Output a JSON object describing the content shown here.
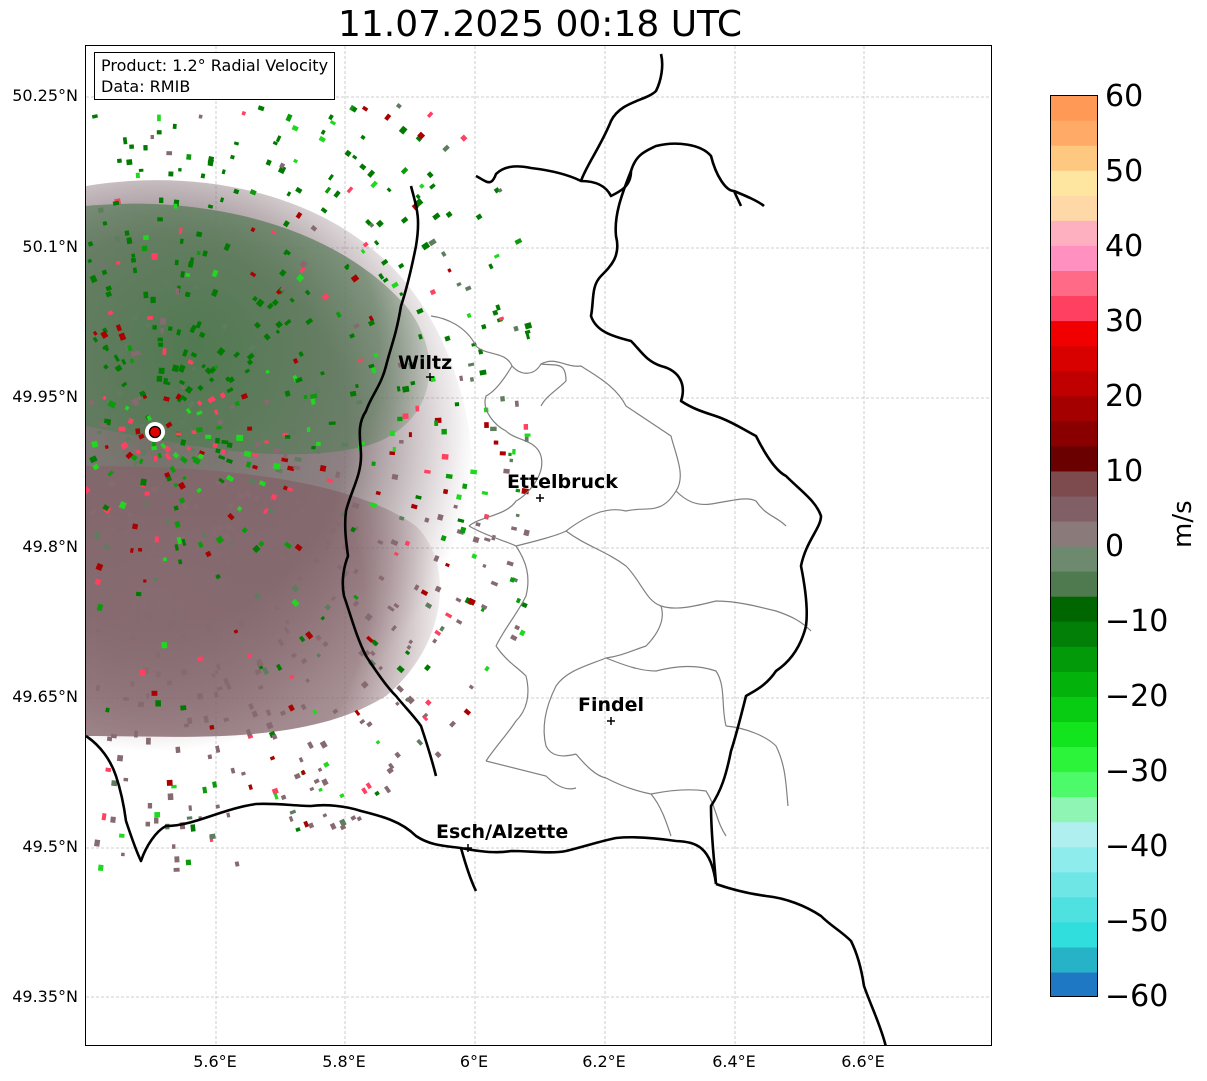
{
  "title": "11.07.2025 00:18 UTC",
  "info_box": {
    "product": "Product: 1.2° Radial Velocity",
    "data": "Data: RMIB"
  },
  "lat_labels": [
    "50.25°N",
    "50.1°N",
    "49.95°N",
    "49.8°N",
    "49.65°N",
    "49.5°N",
    "49.35°N"
  ],
  "lon_labels": [
    "5.6°E",
    "5.8°E",
    "6°E",
    "6.2°E",
    "6.4°E",
    "6.6°E"
  ],
  "cities": [
    {
      "name": "Wiltz"
    },
    {
      "name": "Ettelbruck"
    },
    {
      "name": "Findel"
    },
    {
      "name": "Esch/Alzette"
    }
  ],
  "colorbar": {
    "unit": "m/s",
    "ticks": [
      "60",
      "50",
      "40",
      "30",
      "20",
      "10",
      "0",
      "−10",
      "−20",
      "−30",
      "−40",
      "−50",
      "−60"
    ],
    "min": -60,
    "max": 60,
    "colors_low_to_high": [
      "#1f78c4",
      "#27b3c7",
      "#2fdedd",
      "#4fe0e0",
      "#6fe6e6",
      "#8fecec",
      "#afefef",
      "#8ef5b4",
      "#4dfa6a",
      "#2bf43a",
      "#12e51e",
      "#08cc12",
      "#03b30b",
      "#029a08",
      "#017f06",
      "#006600",
      "#4f7a4f",
      "#6e8a6e",
      "#8a7a7a",
      "#806066",
      "#7d4a4e",
      "#6a0000",
      "#8a0000",
      "#a50000",
      "#c00000",
      "#d90000",
      "#f00000",
      "#ff4060",
      "#ff6a86",
      "#ff90c0",
      "#ffb0c0",
      "#ffd8a8",
      "#ffe6a0",
      "#ffc880",
      "#ffaa66",
      "#ff9955"
    ]
  },
  "map_colors": {
    "border": "#000000",
    "canton": "#808080",
    "grid": "#c0c0c0",
    "radar_site": "#e00000",
    "approaching": "#007a00",
    "receding": "#aa0000",
    "near_zero_neg": "#5e7d5e",
    "near_zero_pos": "#866a70"
  }
}
